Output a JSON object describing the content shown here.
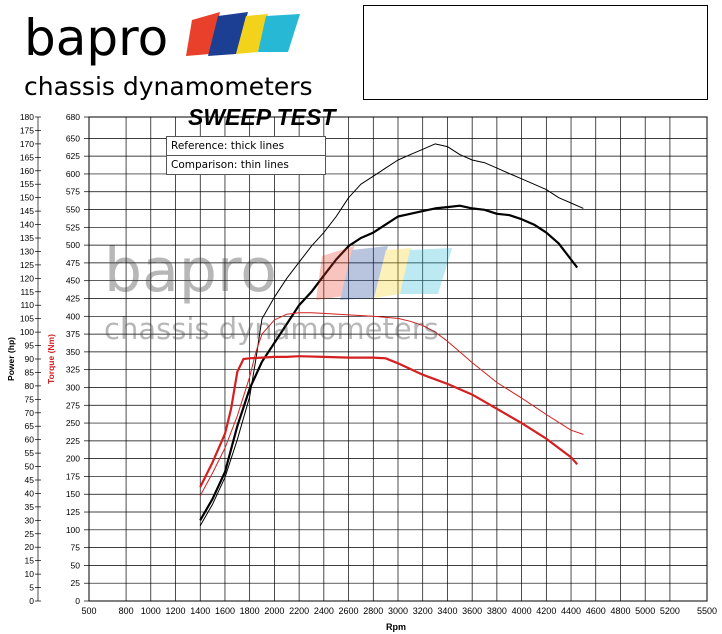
{
  "brand": {
    "name": "bapro",
    "subtitle": "chassis dynamometers",
    "logo_colors": [
      "#e8402a",
      "#1c3f94",
      "#f2d21b",
      "#27b8d6"
    ]
  },
  "legend": {
    "reference": "Reference: thick lines",
    "comparison": "Comparison: thin lines"
  },
  "chart_data": {
    "type": "line",
    "title": "SWEEP TEST",
    "xlabel": "Rpm",
    "ylabel_power": "Power (hp)",
    "ylabel_torque": "Torque (Nm)",
    "x_range": [
      500,
      5500
    ],
    "x_ticks": [
      500,
      800,
      1000,
      1200,
      1400,
      1600,
      1800,
      2000,
      2200,
      2400,
      2600,
      2800,
      3000,
      3200,
      3400,
      3600,
      3800,
      4000,
      4200,
      4400,
      4600,
      4800,
      5000,
      5200,
      5500
    ],
    "power_axis": {
      "range": [
        0,
        180
      ],
      "ticks": [
        0,
        5,
        10,
        15,
        20,
        25,
        30,
        35,
        40,
        45,
        50,
        55,
        60,
        65,
        70,
        75,
        80,
        85,
        90,
        95,
        100,
        105,
        110,
        115,
        120,
        125,
        130,
        135,
        140,
        145,
        150,
        155,
        160,
        165,
        170,
        175,
        180
      ]
    },
    "torque_axis": {
      "range": [
        0,
        680
      ],
      "ticks": [
        0,
        25,
        50,
        75,
        100,
        125,
        150,
        175,
        200,
        225,
        250,
        275,
        300,
        325,
        350,
        375,
        400,
        425,
        450,
        475,
        500,
        525,
        550,
        575,
        600,
        625,
        650,
        680
      ]
    },
    "grid": true,
    "legend_position": "top-left",
    "series": [
      {
        "name": "Power reference",
        "axis": "power",
        "style": "thick",
        "color": "#000000",
        "x": [
          1400,
          1500,
          1600,
          1700,
          1800,
          1900,
          2000,
          2100,
          2200,
          2300,
          2400,
          2500,
          2600,
          2700,
          2800,
          2900,
          3000,
          3100,
          3200,
          3300,
          3400,
          3500,
          3600,
          3700,
          3800,
          3900,
          4000,
          4100,
          4200,
          4300,
          4400,
          4450
        ],
        "y": [
          30,
          38,
          48,
          65,
          79,
          89,
          96,
          103,
          110,
          115,
          121,
          127,
          132,
          135,
          137,
          140,
          143,
          144,
          145,
          146,
          146.5,
          147,
          146,
          145.5,
          144,
          143.5,
          142,
          140,
          137,
          133,
          127,
          124
        ]
      },
      {
        "name": "Power comparison",
        "axis": "power",
        "style": "thin",
        "color": "#000000",
        "x": [
          1400,
          1500,
          1600,
          1700,
          1800,
          1850,
          1900,
          2000,
          2100,
          2200,
          2300,
          2400,
          2500,
          2600,
          2700,
          2800,
          2900,
          3000,
          3100,
          3200,
          3300,
          3400,
          3500,
          3600,
          3700,
          3800,
          3900,
          4000,
          4100,
          4200,
          4300,
          4400,
          4500
        ],
        "y": [
          28,
          36,
          46,
          60,
          76,
          90,
          105,
          113,
          120,
          126,
          132,
          137,
          143,
          150,
          155,
          158,
          161,
          164,
          166,
          168,
          170,
          169,
          166,
          164,
          163,
          161,
          159,
          157,
          155,
          153,
          150,
          148,
          146
        ]
      },
      {
        "name": "Torque reference",
        "axis": "torque",
        "style": "thick",
        "color": "#d42020",
        "x": [
          1400,
          1500,
          1600,
          1650,
          1700,
          1750,
          1800,
          1900,
          2000,
          2100,
          2200,
          2400,
          2600,
          2800,
          2900,
          3000,
          3200,
          3400,
          3600,
          3800,
          4000,
          4200,
          4400,
          4450
        ],
        "y": [
          160,
          195,
          235,
          270,
          322,
          340,
          341,
          342,
          343,
          343,
          344,
          343,
          342,
          342,
          341,
          334,
          318,
          305,
          290,
          270,
          250,
          228,
          202,
          192
        ]
      },
      {
        "name": "Torque comparison",
        "axis": "torque",
        "style": "thin",
        "color": "#d42020",
        "x": [
          1400,
          1500,
          1600,
          1700,
          1800,
          1850,
          1900,
          2000,
          2100,
          2200,
          2300,
          2400,
          2600,
          2800,
          3000,
          3100,
          3200,
          3300,
          3400,
          3500,
          3600,
          3800,
          4000,
          4200,
          4400,
          4500
        ],
        "y": [
          148,
          180,
          215,
          260,
          315,
          350,
          375,
          395,
          403,
          405,
          405,
          404,
          402,
          400,
          397,
          393,
          387,
          378,
          365,
          350,
          335,
          307,
          285,
          262,
          240,
          234
        ]
      }
    ]
  }
}
